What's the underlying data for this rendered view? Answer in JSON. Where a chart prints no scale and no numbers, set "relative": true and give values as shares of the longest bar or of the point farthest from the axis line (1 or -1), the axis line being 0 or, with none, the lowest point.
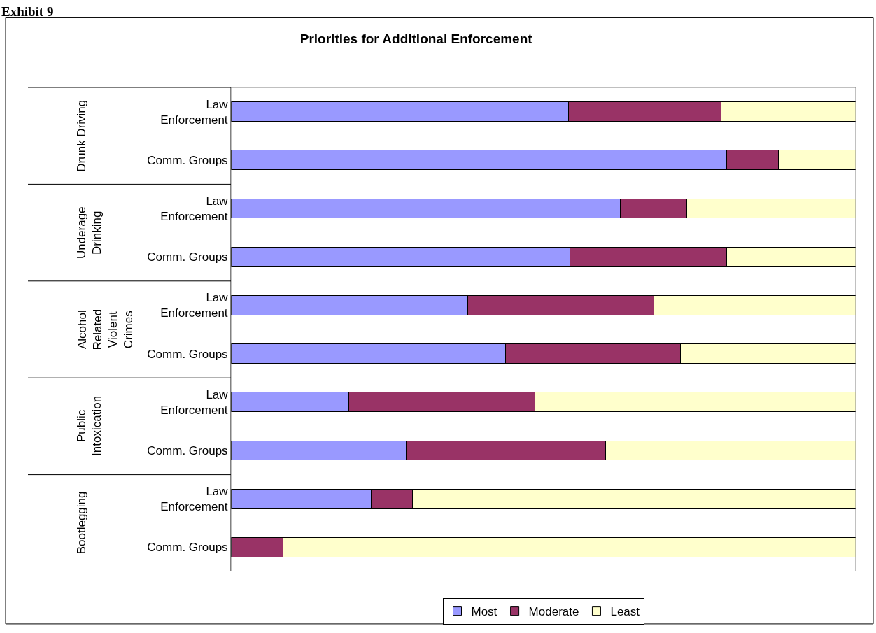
{
  "chart_data": {
    "type": "bar",
    "orientation": "horizontal",
    "stacked": true,
    "relative": true,
    "title": "Priorities for Additional Enforcement",
    "categories": [
      "Law Enforcement",
      "Comm. Groups",
      "Law Enforcement",
      "Comm. Groups",
      "Law Enforcement",
      "Comm. Groups",
      "Law Enforcement",
      "Comm. Groups",
      "Law Enforcement",
      "Comm. Groups"
    ],
    "series": [
      {
        "name": "Most",
        "color": "#9999ff",
        "values": [
          0.54,
          0.793,
          0.623,
          0.543,
          0.379,
          0.44,
          0.189,
          0.28,
          0.225,
          0
        ]
      },
      {
        "name": "Moderate",
        "color": "#993366",
        "values": [
          0.244,
          0.083,
          0.107,
          0.25,
          0.298,
          0.28,
          0.298,
          0.32,
          0.066,
          0.083
        ]
      },
      {
        "name": "Least",
        "color": "#ffffcc",
        "values": [
          0.216,
          0.124,
          0.27,
          0.207,
          0.323,
          0.28,
          0.513,
          0.4,
          0.709,
          0.917
        ]
      }
    ],
    "annotations": [
      "Drunk Driving",
      "Underage Drinking",
      "Alcohol Related Violent Crimes",
      "Public Intoxication",
      "Bootlegging",
      "Exhibit 9"
    ],
    "legend": "bottom"
  }
}
